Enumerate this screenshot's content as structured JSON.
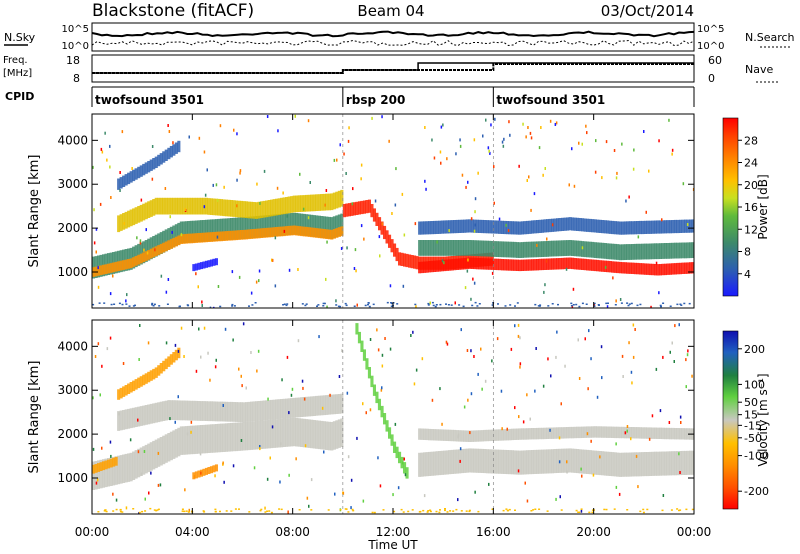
{
  "header": {
    "station": "Blackstone (fitACF)",
    "beam": "Beam 04",
    "date": "03/Oct/2014"
  },
  "noise_panel": {
    "left_label": "N.Sky",
    "left_ticks": [
      "10^5",
      "10^0"
    ],
    "right_ticks": [
      "10^5",
      "10^0"
    ],
    "right_label": "N.Search"
  },
  "freq_panel": {
    "left_label_line1": "Freq.",
    "left_label_line2": "[MHz]",
    "left_ticks": [
      "18",
      "8"
    ],
    "right_ticks": [
      "60",
      "0"
    ],
    "right_label": "Nave"
  },
  "cpid_panel": {
    "label": "CPID",
    "segments": [
      {
        "name": "twofsound 3501",
        "start_hour": 0,
        "end_hour": 10
      },
      {
        "name": "rbsp 200",
        "start_hour": 10,
        "end_hour": 16
      },
      {
        "name": "twofsound 3501",
        "start_hour": 16,
        "end_hour": 24
      }
    ]
  },
  "chart_data": [
    {
      "type": "heatmap",
      "ylabel": "Slant Range [km]",
      "y_ticks": [
        "1000",
        "2000",
        "3000",
        "4000"
      ],
      "ylim": [
        180,
        4600
      ],
      "xlim": [
        0,
        24
      ],
      "colorbar": {
        "label": "Power [dB]",
        "ticks": [
          "4",
          "8",
          "12",
          "16",
          "20",
          "24",
          "28"
        ],
        "range": [
          0,
          32
        ],
        "colors": [
          "#1a1aff",
          "#2d5fb0",
          "#3d8a6a",
          "#5fba3c",
          "#c8e020",
          "#ffc000",
          "#ff8000",
          "#ff4000",
          "#ff0000"
        ]
      },
      "bands": [
        {
          "points": [
            [
              0.0,
              1100
            ],
            [
              1.5,
              1300
            ],
            [
              3.5,
              1900
            ],
            [
              6.0,
              2000
            ],
            [
              8.0,
              2100
            ],
            [
              9.5,
              2000
            ],
            [
              10.0,
              2100
            ]
          ],
          "width": 500,
          "color": "#3d8a6a"
        },
        {
          "points": [
            [
              0.0,
              1000
            ],
            [
              1.5,
              1200
            ],
            [
              3.5,
              1750
            ],
            [
              6.0,
              1850
            ],
            [
              8.0,
              1950
            ],
            [
              9.5,
              1850
            ],
            [
              10.0,
              1950
            ]
          ],
          "width": 220,
          "color": "#ff9000"
        },
        {
          "points": [
            [
              1.0,
              2100
            ],
            [
              2.5,
              2500
            ],
            [
              4.5,
              2500
            ],
            [
              6.5,
              2400
            ],
            [
              8.0,
              2550
            ],
            [
              9.5,
              2600
            ],
            [
              10.0,
              2700
            ]
          ],
          "width": 380,
          "color": "#e0c000"
        },
        {
          "points": [
            [
              10.0,
              2400
            ],
            [
              11.0,
              2500
            ],
            [
              12.2,
              1300
            ],
            [
              13.0,
              1200
            ],
            [
              14.0,
              1200
            ],
            [
              16.0,
              1300
            ]
          ],
          "width": 300,
          "color": "#ff2000"
        },
        {
          "points": [
            [
              13.0,
              1100
            ],
            [
              15.0,
              1200
            ],
            [
              17.0,
              1150
            ],
            [
              19.0,
              1200
            ],
            [
              21.0,
              1100
            ],
            [
              22.5,
              1050
            ],
            [
              24.0,
              1100
            ]
          ],
          "width": 260,
          "color": "#ff1000"
        },
        {
          "points": [
            [
              13.0,
              1550
            ],
            [
              15.0,
              1550
            ],
            [
              17.0,
              1500
            ],
            [
              19.0,
              1550
            ],
            [
              21.0,
              1450
            ],
            [
              24.0,
              1500
            ]
          ],
          "width": 360,
          "color": "#3d8a6a"
        },
        {
          "points": [
            [
              13.0,
              2000
            ],
            [
              15.0,
              2050
            ],
            [
              17.0,
              2000
            ],
            [
              19.0,
              2100
            ],
            [
              21.0,
              2000
            ],
            [
              24.0,
              2050
            ]
          ],
          "width": 300,
          "color": "#2d5fb0"
        },
        {
          "points": [
            [
              1.0,
              3000
            ],
            [
              2.5,
              3500
            ],
            [
              3.5,
              3900
            ]
          ],
          "width": 260,
          "color": "#2d5fb0"
        },
        {
          "points": [
            [
              4.0,
              1100
            ],
            [
              5.0,
              1250
            ]
          ],
          "width": 160,
          "color": "#1a1aff"
        }
      ]
    },
    {
      "type": "heatmap",
      "ylabel": "Slant Range [km]",
      "y_ticks": [
        "1000",
        "2000",
        "3000",
        "4000"
      ],
      "ylim": [
        180,
        4600
      ],
      "xlim": [
        0,
        24
      ],
      "x_ticks": [
        "00:00",
        "04:00",
        "08:00",
        "12:00",
        "16:00",
        "20:00",
        "00:00"
      ],
      "xlabel": "Time UT",
      "colorbar": {
        "label": "Velocity [m s⁻¹]",
        "ticks": [
          "-200",
          "-100",
          "-50",
          "-15",
          "15",
          "50",
          "100",
          "200"
        ],
        "range": [
          -250,
          250
        ],
        "colors": [
          "#ff0000",
          "#ff5000",
          "#ff9000",
          "#ffc000",
          "#c8c8c0",
          "#60d040",
          "#208040",
          "#2060c0",
          "#1010b0"
        ]
      },
      "bands": [
        {
          "points": [
            [
              0.0,
              1050
            ],
            [
              1.5,
              1250
            ],
            [
              3.5,
              1850
            ],
            [
              6.0,
              1950
            ],
            [
              8.0,
              2050
            ],
            [
              9.5,
              1950
            ],
            [
              10.0,
              2050
            ]
          ],
          "width": 650,
          "color": "#c8c8c0"
        },
        {
          "points": [
            [
              1.0,
              2300
            ],
            [
              3.0,
              2550
            ],
            [
              6.0,
              2500
            ],
            [
              8.0,
              2600
            ],
            [
              10.0,
              2700
            ]
          ],
          "width": 450,
          "color": "#c8c8c0"
        },
        {
          "points": [
            [
              10.5,
              4400
            ],
            [
              11.2,
              3000
            ],
            [
              12.0,
              1700
            ],
            [
              12.6,
              1000
            ]
          ],
          "width": 260,
          "color": "#60d040"
        },
        {
          "points": [
            [
              13.0,
              1300
            ],
            [
              15.0,
              1400
            ],
            [
              17.0,
              1350
            ],
            [
              19.0,
              1400
            ],
            [
              21.0,
              1300
            ],
            [
              24.0,
              1350
            ]
          ],
          "width": 550,
          "color": "#c8c8c0"
        },
        {
          "points": [
            [
              13.0,
              2000
            ],
            [
              15.0,
              1950
            ],
            [
              17.0,
              2000
            ],
            [
              20.0,
              2050
            ],
            [
              24.0,
              2000
            ]
          ],
          "width": 260,
          "color": "#c8c8c0"
        },
        {
          "points": [
            [
              1.0,
              2900
            ],
            [
              2.5,
              3400
            ],
            [
              3.5,
              3900
            ]
          ],
          "width": 240,
          "color": "#ffa000"
        },
        {
          "points": [
            [
              4.0,
              1050
            ],
            [
              5.0,
              1250
            ]
          ],
          "width": 160,
          "color": "#ff9000"
        },
        {
          "points": [
            [
              0.0,
              1200
            ],
            [
              1.0,
              1400
            ]
          ],
          "width": 200,
          "color": "#ffa000"
        }
      ]
    }
  ]
}
